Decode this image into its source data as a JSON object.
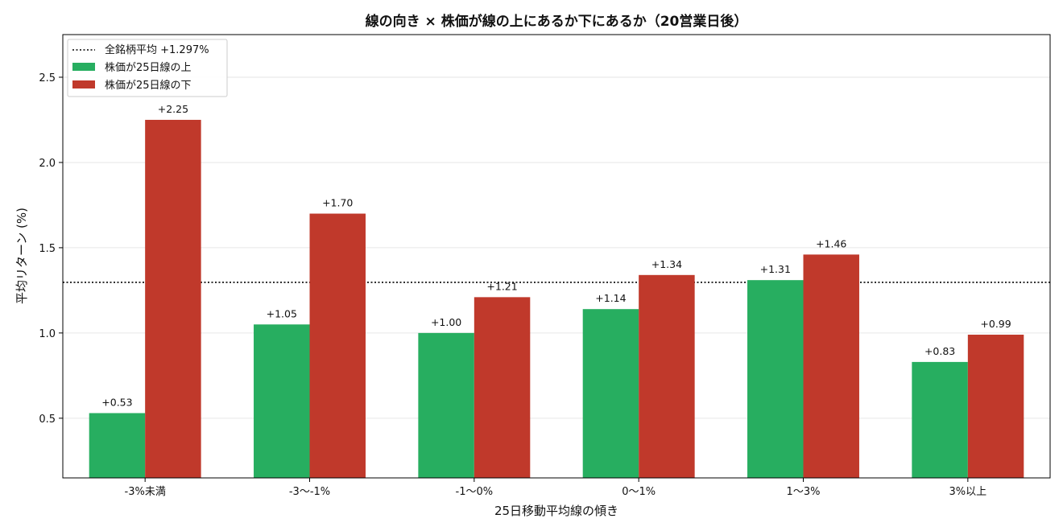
{
  "chart_data": {
    "type": "bar",
    "title": "線の向き × 株価が線の上にあるか下にあるか（20営業日後）",
    "xlabel": "25日移動平均線の傾き",
    "ylabel": "平均リターン (%)",
    "categories": [
      "-3%未満",
      "-3〜-1%",
      "-1〜0%",
      "0〜1%",
      "1〜3%",
      "3%以上"
    ],
    "series": [
      {
        "name": "株価が25日線の上",
        "color": "#27ae60",
        "values": [
          0.53,
          1.05,
          1.0,
          1.14,
          1.31,
          0.83
        ],
        "labels": [
          "+0.53",
          "+1.05",
          "+1.00",
          "+1.14",
          "+1.31",
          "+0.83"
        ]
      },
      {
        "name": "株価が25日線の下",
        "color": "#c0392b",
        "values": [
          2.25,
          1.7,
          1.21,
          1.34,
          1.46,
          0.99
        ],
        "labels": [
          "+2.25",
          "+1.70",
          "+1.21",
          "+1.34",
          "+1.46",
          "+0.99"
        ]
      }
    ],
    "reference_line": {
      "label": "全銘柄平均 +1.297%",
      "value": 1.297,
      "style": "dotted",
      "color": "#000000"
    },
    "yticks": [
      0.5,
      1.0,
      1.5,
      2.0,
      2.5
    ],
    "ytick_labels": [
      "0.5",
      "1.0",
      "1.5",
      "2.0",
      "2.5"
    ],
    "ylim": [
      0.15,
      2.75
    ],
    "grid": "horizontal",
    "legend_position": "top-left"
  }
}
